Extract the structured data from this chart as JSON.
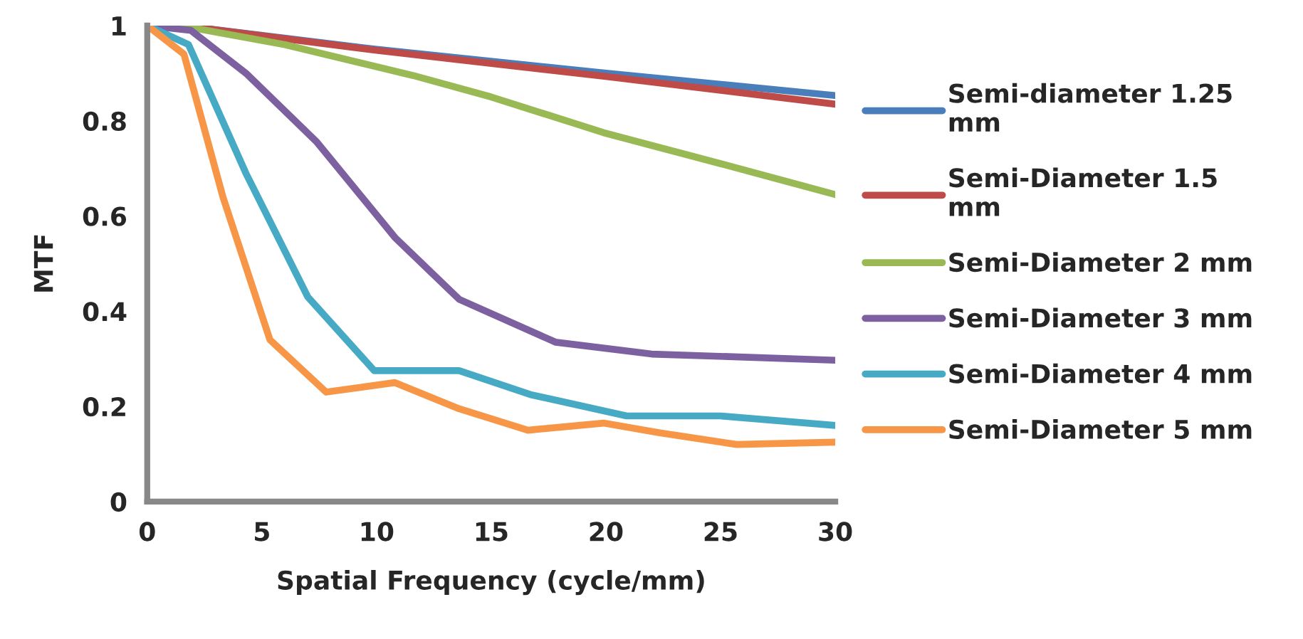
{
  "chart_data": {
    "type": "line",
    "xlabel": "Spatial Frequency (cycle/mm)",
    "ylabel": "MTF",
    "xlim": [
      0,
      30
    ],
    "ylim": [
      0,
      1
    ],
    "xticks": [
      0,
      5,
      10,
      15,
      20,
      25,
      30
    ],
    "yticks": [
      0,
      0.2,
      0.4,
      0.6,
      0.8,
      1
    ],
    "grid": false,
    "legend": "right",
    "marker": "none",
    "line_style": "solid",
    "series": [
      {
        "name": "Semi-diameter 1.25\nmm",
        "color": "#4a7ebb",
        "x": [
          0,
          1.5,
          10,
          20,
          30
        ],
        "values": [
          1,
          1,
          0.95,
          0.9,
          0.853
        ]
      },
      {
        "name": "Semi-Diameter 1.5\nmm",
        "color": "#be4b48",
        "x": [
          0,
          1.5,
          10,
          20,
          30
        ],
        "values": [
          1,
          1,
          0.948,
          0.893,
          0.835
        ]
      },
      {
        "name": "Semi-Diameter 2 mm",
        "color": "#98b954",
        "x": [
          0,
          2,
          6,
          11.6,
          15,
          19.9,
          25,
          30
        ],
        "values": [
          1,
          0.995,
          0.96,
          0.895,
          0.85,
          0.775,
          0.71,
          0.645
        ]
      },
      {
        "name": "Semi-Diameter 3 mm",
        "color": "#7d60a0",
        "x": [
          0,
          1.9,
          4.3,
          7.4,
          10.8,
          13.6,
          17.8,
          22,
          30
        ],
        "values": [
          1,
          0.99,
          0.9,
          0.755,
          0.555,
          0.425,
          0.335,
          0.31,
          0.297
        ]
      },
      {
        "name": "Semi-Diameter 4 mm",
        "color": "#46aac5",
        "x": [
          0,
          1.8,
          4.3,
          7,
          9.9,
          13.6,
          16.7,
          20.9,
          25,
          30
        ],
        "values": [
          1,
          0.96,
          0.69,
          0.43,
          0.275,
          0.275,
          0.225,
          0.18,
          0.18,
          0.16
        ]
      },
      {
        "name": "Semi-Diameter 5 mm",
        "color": "#f79646",
        "x": [
          0,
          1.6,
          3.3,
          5.35,
          7.8,
          10.8,
          13.6,
          16.6,
          19.9,
          22.3,
          25.7,
          30
        ],
        "values": [
          1,
          0.94,
          0.64,
          0.34,
          0.23,
          0.25,
          0.195,
          0.15,
          0.165,
          0.145,
          0.12,
          0.125
        ]
      }
    ]
  }
}
